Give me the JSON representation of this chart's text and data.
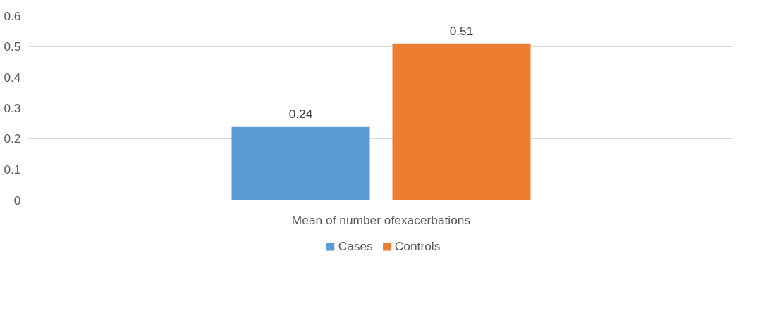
{
  "chart_data": {
    "type": "bar",
    "categories": [
      "Mean of number ofexacerbations"
    ],
    "series": [
      {
        "name": "Cases",
        "color": "#5b9bd5",
        "values": [
          0.24
        ]
      },
      {
        "name": "Controls",
        "color": "#ed7d31",
        "values": [
          0.51
        ]
      }
    ],
    "ylim": [
      0,
      0.6
    ],
    "yticks": [
      0,
      0.1,
      0.2,
      0.3,
      0.4,
      0.5,
      0.6
    ],
    "grid": "y",
    "legend": "bottom",
    "data_labels": true
  }
}
